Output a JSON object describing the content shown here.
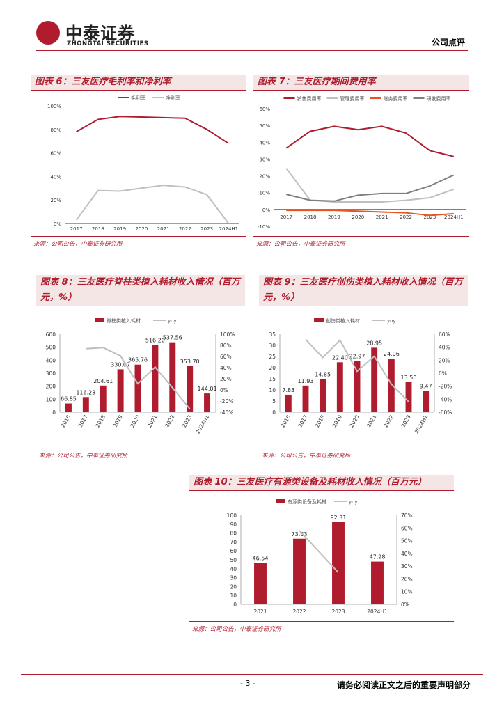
{
  "header": {
    "logo_cn": "中泰证券",
    "logo_en": "ZHONGTAI SECURITIES",
    "doc_type": "公司点评"
  },
  "footer": {
    "page": "- 3 -",
    "disclaimer": "请务必阅读正文之后的重要声明部分"
  },
  "colors": {
    "red": "#b01c2e",
    "gray": "#bfbfbf",
    "orange": "#e8531f",
    "dark_gray": "#7f7f7f"
  },
  "chart_data": [
    {
      "id": "fig6",
      "type": "line",
      "title": "图表 6：三友医疗毛利率和净利率",
      "source": "来源：公司公告，中泰证券研究所",
      "categories": [
        "2017",
        "2018",
        "2019",
        "2020",
        "2021",
        "2022",
        "2023",
        "2024H1"
      ],
      "ylim": [
        0,
        100
      ],
      "yticks": [
        "0%",
        "20%",
        "40%",
        "60%",
        "80%",
        "100%"
      ],
      "series": [
        {
          "name": "毛利率",
          "color": "#b01c2e",
          "values": [
            78,
            88.5,
            91,
            90.5,
            90,
            89.5,
            80,
            68
          ]
        },
        {
          "name": "净利率",
          "color": "#bfbfbf",
          "values": [
            3,
            28,
            27.5,
            30,
            32.5,
            31,
            24.5,
            0
          ]
        }
      ]
    },
    {
      "id": "fig7",
      "type": "line",
      "title": "图表 7：三友医疗期间费用率",
      "source": "来源：公司公告，中泰证券研究所",
      "categories": [
        "2017",
        "2018",
        "2019",
        "2020",
        "2021",
        "2022",
        "2023",
        "2024H1"
      ],
      "ylim": [
        -10,
        60
      ],
      "yticks": [
        "-10%",
        "0%",
        "10%",
        "20%",
        "30%",
        "40%",
        "50%",
        "60%"
      ],
      "series": [
        {
          "name": "销售费用率",
          "color": "#b01c2e",
          "values": [
            36.5,
            46.5,
            49.5,
            47.5,
            49.5,
            45.5,
            35,
            31.5
          ]
        },
        {
          "name": "管理费用率",
          "color": "#bfbfbf",
          "values": [
            24.5,
            5.5,
            4.5,
            4.5,
            4.5,
            5.5,
            7,
            12
          ]
        },
        {
          "name": "财务费用率",
          "color": "#e8531f",
          "values": [
            -0.5,
            -0.5,
            -0.5,
            -1,
            -1.5,
            -2,
            -3.5,
            -2.5
          ]
        },
        {
          "name": "研发费用率",
          "color": "#7f7f7f",
          "values": [
            9,
            5.5,
            5,
            8.5,
            9.5,
            9.5,
            14,
            20.5
          ]
        }
      ]
    },
    {
      "id": "fig8",
      "type": "bar",
      "title": "图表 8：三友医疗脊柱类植入耗材收入情况（百万元，%）",
      "title_line1": "图表 8：三友医疗脊柱类植入耗材收入情况（百万",
      "title_line2": "元，%）",
      "source": "来源：公司公告，中泰证券研究所",
      "categories": [
        "2016",
        "2017",
        "2018",
        "2019",
        "2020",
        "2021",
        "2022",
        "2023",
        "2024H1"
      ],
      "bar_series": {
        "name": "脊柱类植入耗材",
        "values": [
          66.85,
          116.23,
          204.61,
          330.07,
          365.76,
          516.2,
          537.56,
          353.7,
          144.01
        ],
        "labels": [
          "66.85",
          "116.23",
          "204.61",
          "330.07",
          "365.76",
          "516.20",
          "537.56",
          "353.70",
          "144.01"
        ]
      },
      "line_series": {
        "name": "yoy",
        "values": [
          null,
          74,
          76,
          61,
          11,
          41,
          4,
          -34,
          null
        ]
      },
      "ylim_left": [
        0,
        600
      ],
      "yticks_left": [
        "0",
        "100",
        "200",
        "300",
        "400",
        "500",
        "600"
      ],
      "ylim_right": [
        -40,
        100
      ],
      "yticks_right": [
        "-40%",
        "-20%",
        "0%",
        "20%",
        "40%",
        "60%",
        "80%",
        "100%"
      ]
    },
    {
      "id": "fig9",
      "type": "bar",
      "title": "图表 9：三友医疗创伤类植入耗材收入情况（百万元，%）",
      "title_line1": "图表 9：三友医疗创伤类植入耗材收入情况（百万",
      "title_line2": "元，%）",
      "source": "来源：公司公告，中泰证券研究所",
      "categories": [
        "2016",
        "2017",
        "2018",
        "2019",
        "2020",
        "2021",
        "2022",
        "2023",
        "2024H1"
      ],
      "bar_series": {
        "name": "创伤类植入耗材",
        "values": [
          7.83,
          11.93,
          14.85,
          22.4,
          22.97,
          28.95,
          24.06,
          13.5,
          9.47
        ],
        "labels": [
          "7.83",
          "11.93",
          "14.85",
          "22.40",
          "22.97",
          "28.95",
          "24.06",
          "13.50",
          "9.47"
        ]
      },
      "line_series": {
        "name": "yoy",
        "values": [
          null,
          52,
          24,
          51,
          3,
          26,
          -17,
          -44,
          null
        ]
      },
      "ylim_left": [
        0,
        35
      ],
      "yticks_left": [
        "0",
        "5",
        "10",
        "15",
        "20",
        "25",
        "30",
        "35"
      ],
      "ylim_right": [
        -60,
        60
      ],
      "yticks_right": [
        "-60%",
        "-40%",
        "-20%",
        "0%",
        "20%",
        "40%",
        "60%"
      ]
    },
    {
      "id": "fig10",
      "type": "bar",
      "title": "图表 10：三友医疗有源类设备及耗材收入情况（百万元）",
      "source": "来源：公司公告，中泰证券研究所",
      "categories": [
        "2021",
        "2022",
        "2023",
        "2024H1"
      ],
      "bar_series": {
        "name": "有源类设备及耗材",
        "values": [
          46.54,
          73.63,
          92.31,
          47.98
        ],
        "labels": [
          "46.54",
          "73.63",
          "92.31",
          "47.98"
        ]
      },
      "line_series": {
        "name": "yoy",
        "values": [
          null,
          58,
          25,
          null
        ]
      },
      "ylim_left": [
        0,
        100
      ],
      "yticks_left": [
        "0",
        "10",
        "20",
        "30",
        "40",
        "50",
        "60",
        "70",
        "80",
        "90",
        "100"
      ],
      "ylim_right": [
        0,
        70
      ],
      "yticks_right": [
        "0%",
        "10%",
        "20%",
        "30%",
        "40%",
        "50%",
        "60%",
        "70%"
      ]
    }
  ]
}
